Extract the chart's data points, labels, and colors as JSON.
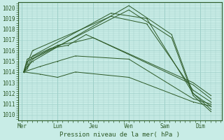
{
  "background_color": "#c8ece6",
  "grid_color": "#9ecfc8",
  "line_color": "#2d5a27",
  "title": "Pression niveau de la mer( hPa )",
  "ylim": [
    1009.5,
    1020.5
  ],
  "yticks": [
    1010,
    1011,
    1012,
    1013,
    1014,
    1015,
    1016,
    1017,
    1018,
    1019,
    1020
  ],
  "day_labels": [
    "Mer",
    "Lun",
    "Jeu",
    "Ven",
    "Sam",
    "Dim"
  ],
  "day_positions": [
    0,
    1,
    2,
    3,
    4,
    5
  ],
  "xlim": [
    -0.1,
    5.6
  ],
  "series": [
    {
      "x": [
        0.05,
        0.15,
        0.3,
        3.0,
        4.2,
        4.8,
        5.3
      ],
      "y": [
        1014.0,
        1014.5,
        1015.0,
        1020.2,
        1017.5,
        1012.0,
        1010.5
      ]
    },
    {
      "x": [
        0.05,
        0.15,
        0.3,
        3.0,
        4.2,
        4.8,
        5.3
      ],
      "y": [
        1014.0,
        1014.3,
        1015.2,
        1019.8,
        1017.2,
        1011.8,
        1010.3
      ]
    },
    {
      "x": [
        0.05,
        0.15,
        0.3,
        2.5,
        3.5,
        4.8,
        5.3
      ],
      "y": [
        1014.0,
        1014.5,
        1015.5,
        1019.5,
        1019.0,
        1012.0,
        1010.8
      ]
    },
    {
      "x": [
        0.05,
        0.15,
        0.3,
        2.5,
        3.5,
        4.8,
        5.3
      ],
      "y": [
        1014.0,
        1014.8,
        1016.0,
        1019.2,
        1018.5,
        1012.3,
        1011.2
      ]
    },
    {
      "x": [
        0.05,
        0.15,
        1.0,
        1.5,
        2.0,
        4.8,
        5.3
      ],
      "y": [
        1014.0,
        1015.0,
        1016.5,
        1016.8,
        1017.2,
        1012.8,
        1011.5
      ]
    },
    {
      "x": [
        0.05,
        0.15,
        0.8,
        1.3,
        1.8,
        4.8,
        5.3
      ],
      "y": [
        1014.0,
        1015.2,
        1016.2,
        1016.5,
        1017.5,
        1013.0,
        1011.8
      ]
    },
    {
      "x": [
        0.05,
        0.5,
        1.0,
        1.5,
        3.0,
        4.8,
        5.3
      ],
      "y": [
        1014.0,
        1014.5,
        1015.0,
        1015.5,
        1015.2,
        1011.5,
        1011.0
      ]
    },
    {
      "x": [
        0.05,
        0.5,
        1.0,
        1.5,
        3.0,
        4.8,
        5.3
      ],
      "y": [
        1014.0,
        1013.8,
        1013.5,
        1014.0,
        1013.5,
        1011.2,
        1010.8
      ]
    }
  ]
}
